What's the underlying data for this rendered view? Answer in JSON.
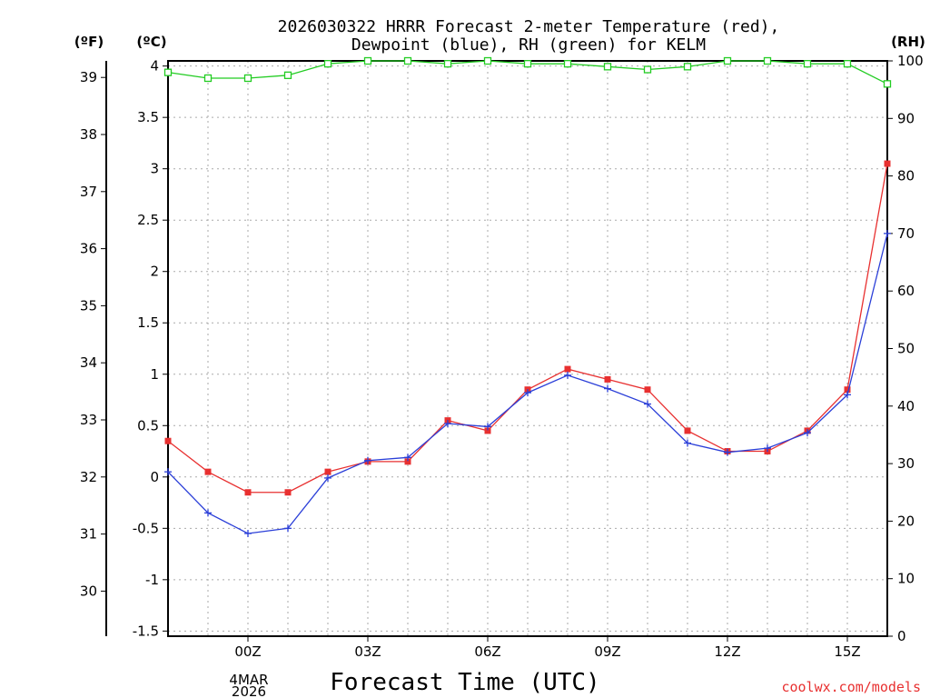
{
  "chart_data": {
    "type": "line",
    "title_line1": "2026030322 HRRR Forecast 2-meter Temperature (red),",
    "title_line2": "Dewpoint (blue), RH (green) for KELM",
    "xlabel": "Forecast Time (UTC)",
    "unit_f": "(ºF)",
    "unit_c": "(ºC)",
    "unit_rh": "(RH)",
    "date_line1": "4MAR",
    "date_line2": "2026",
    "credit": "coolwx.com/models",
    "x": [
      22,
      23,
      24,
      25,
      26,
      27,
      28,
      29,
      30,
      31,
      32,
      33,
      34,
      35,
      36,
      37,
      38,
      39,
      40
    ],
    "xlim": [
      22,
      40
    ],
    "x_ticks": [
      {
        "x": 24,
        "label": "00Z"
      },
      {
        "x": 27,
        "label": "03Z"
      },
      {
        "x": 30,
        "label": "06Z"
      },
      {
        "x": 33,
        "label": "09Z"
      },
      {
        "x": 36,
        "label": "12Z"
      },
      {
        "x": 39,
        "label": "15Z"
      }
    ],
    "x_grid": [
      23,
      24,
      25,
      26,
      27,
      28,
      29,
      30,
      31,
      32,
      33,
      34,
      35,
      36,
      37,
      38,
      39
    ],
    "y_c_lim": [
      -1.55,
      4.05
    ],
    "y_c_ticks": [
      {
        "v": -1.5,
        "label": "-1.5"
      },
      {
        "v": -1,
        "label": "-1"
      },
      {
        "v": -0.5,
        "label": "-0.5"
      },
      {
        "v": 0,
        "label": "0"
      },
      {
        "v": 0.5,
        "label": "0.5"
      },
      {
        "v": 1,
        "label": "1"
      },
      {
        "v": 1.5,
        "label": "1.5"
      },
      {
        "v": 2,
        "label": "2"
      },
      {
        "v": 2.5,
        "label": "2.5"
      },
      {
        "v": 3,
        "label": "3"
      },
      {
        "v": 3.5,
        "label": "3.5"
      },
      {
        "v": 4,
        "label": "4"
      }
    ],
    "y_f_ticks": [
      {
        "v": 30,
        "label": "30"
      },
      {
        "v": 31,
        "label": "31"
      },
      {
        "v": 32,
        "label": "32"
      },
      {
        "v": 33,
        "label": "33"
      },
      {
        "v": 34,
        "label": "34"
      },
      {
        "v": 35,
        "label": "35"
      },
      {
        "v": 36,
        "label": "36"
      },
      {
        "v": 37,
        "label": "37"
      },
      {
        "v": 38,
        "label": "38"
      },
      {
        "v": 39,
        "label": "39"
      }
    ],
    "y_rh_lim": [
      0,
      100
    ],
    "y_rh_ticks": [
      {
        "v": 0,
        "label": "0"
      },
      {
        "v": 10,
        "label": "10"
      },
      {
        "v": 20,
        "label": "20"
      },
      {
        "v": 30,
        "label": "30"
      },
      {
        "v": 40,
        "label": "40"
      },
      {
        "v": 50,
        "label": "50"
      },
      {
        "v": 60,
        "label": "60"
      },
      {
        "v": 70,
        "label": "70"
      },
      {
        "v": 80,
        "label": "80"
      },
      {
        "v": 90,
        "label": "90"
      },
      {
        "v": 100,
        "label": "100"
      }
    ],
    "series": [
      {
        "name": "Temperature",
        "axis": "c",
        "color": "#e83030",
        "marker": "square",
        "values": [
          0.35,
          0.05,
          -0.15,
          -0.15,
          0.05,
          0.15,
          0.15,
          0.55,
          0.45,
          0.85,
          1.05,
          0.95,
          0.85,
          0.45,
          0.25,
          0.25,
          0.45,
          0.85,
          3.05
        ]
      },
      {
        "name": "Dewpoint",
        "axis": "c",
        "color": "#2b3fd8",
        "marker": "plus",
        "values": [
          0.05,
          -0.35,
          -0.55,
          -0.5,
          -0.01,
          0.16,
          0.19,
          0.52,
          0.49,
          0.82,
          0.99,
          0.86,
          0.71,
          0.33,
          0.24,
          0.28,
          0.43,
          0.8,
          2.37
        ]
      },
      {
        "name": "RH",
        "axis": "rh",
        "color": "#22cc22",
        "marker": "open-square",
        "values": [
          98,
          97,
          97,
          97.5,
          99.5,
          100,
          100,
          99.5,
          100,
          99.5,
          99.5,
          99,
          98.5,
          99,
          100,
          100,
          99.5,
          99.5,
          96
        ]
      }
    ]
  }
}
